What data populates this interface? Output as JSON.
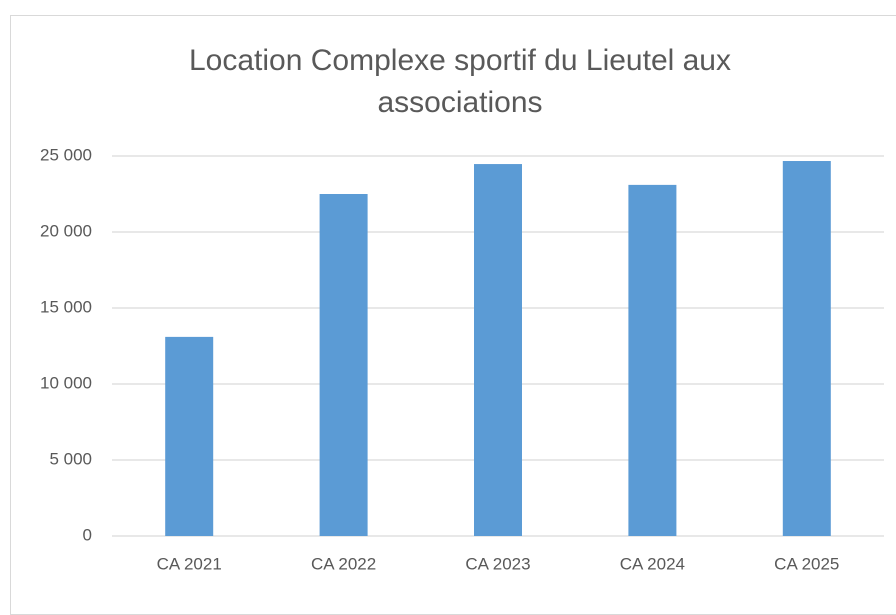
{
  "chart_data": {
    "type": "bar",
    "title": "Location Complexe sportif du Lieutel aux associations",
    "categories": [
      "CA 2021",
      "CA 2022",
      "CA 2023",
      "CA 2024",
      "CA 2025"
    ],
    "values": [
      13100,
      22500,
      24470,
      23100,
      24670
    ],
    "color": "#5b9bd5",
    "ylim": [
      0,
      25000
    ],
    "yticks": [
      0,
      {
        "value": 5000,
        "label": "5 000"
      },
      {
        "value": 10000,
        "label": "10 000"
      },
      {
        "value": 15000,
        "label": "15 000"
      },
      {
        "value": 20000,
        "label": "20 000"
      },
      {
        "value": 25000,
        "label": "25 000"
      }
    ],
    "grid": true
  }
}
